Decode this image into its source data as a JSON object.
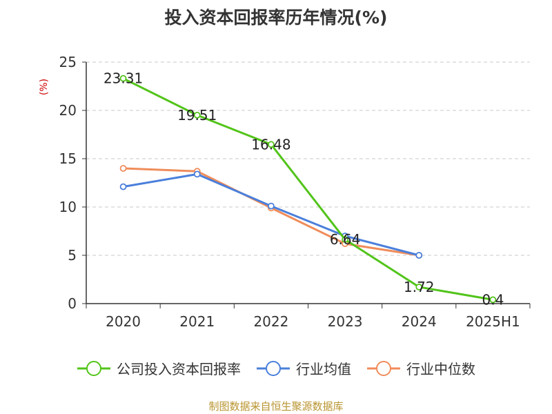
{
  "chart_data": {
    "type": "line",
    "title": "投入资本回报率历年情况(%)",
    "ylabel": "(%)",
    "xlabel": "",
    "categories": [
      "2020",
      "2021",
      "2022",
      "2023",
      "2024",
      "2025H1"
    ],
    "ylim": [
      0,
      25
    ],
    "yticks": [
      0,
      5,
      10,
      15,
      20,
      25
    ],
    "grid": true,
    "legend_position": "bottom",
    "series": [
      {
        "name": "公司投入资本回报率",
        "color": "#52c41a",
        "values": [
          23.31,
          19.51,
          16.48,
          6.64,
          1.72,
          0.4
        ],
        "data_labels": [
          "23.31",
          "19.51",
          "16.48",
          "6.64",
          "1.72",
          "0.4"
        ]
      },
      {
        "name": "行业均值",
        "color": "#4a7fdb",
        "values": [
          12.1,
          13.4,
          10.1,
          7.0,
          5.0,
          null
        ]
      },
      {
        "name": "行业中位数",
        "color": "#f08c5a",
        "values": [
          14.0,
          13.7,
          9.9,
          6.2,
          5.0,
          null
        ]
      }
    ]
  },
  "source": "制图数据来自恒生聚源数据库"
}
